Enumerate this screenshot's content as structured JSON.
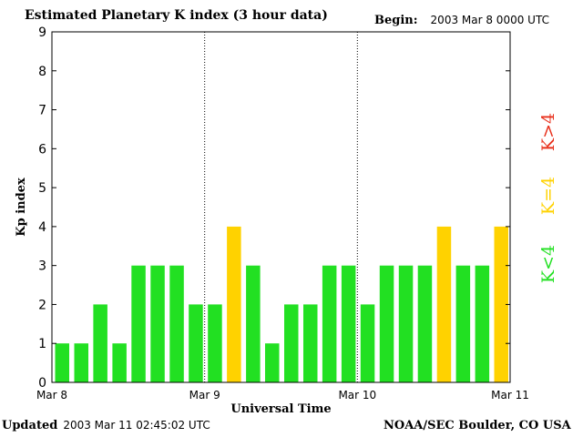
{
  "header": {
    "title": "Estimated Planetary K index (3 hour data)",
    "begin_label": "Begin:",
    "begin_value": "2003 Mar 8 0000 UTC"
  },
  "footer": {
    "updated_label": "Updated",
    "updated_value": "2003 Mar 11 02:45:02 UTC",
    "source": "NOAA/SEC Boulder, CO USA"
  },
  "legend": {
    "items": [
      {
        "label": "K>4",
        "color": "#e8301c"
      },
      {
        "label": "K=4",
        "color": "#ffd200"
      },
      {
        "label": "K<4",
        "color": "#22e022"
      }
    ]
  },
  "chart_data": {
    "type": "bar",
    "title": "Estimated Planetary K index (3 hour data)",
    "xlabel": "Universal Time",
    "ylabel": "Kp index",
    "ylim": [
      0,
      9
    ],
    "yticks": [
      0,
      1,
      2,
      3,
      4,
      5,
      6,
      7,
      8,
      9
    ],
    "xticks": [
      "Mar 8",
      "Mar 9",
      "Mar 10",
      "Mar 11"
    ],
    "day_separators": [
      "Mar 9",
      "Mar 10"
    ],
    "values": [
      1,
      1,
      2,
      1,
      3,
      3,
      3,
      2,
      2,
      4,
      3,
      1,
      2,
      2,
      3,
      3,
      2,
      3,
      3,
      3,
      4,
      3,
      3,
      4
    ],
    "colors": {
      "low": "#22e022",
      "equal": "#ffd200",
      "high": "#e8301c"
    },
    "legend_position": "right"
  }
}
